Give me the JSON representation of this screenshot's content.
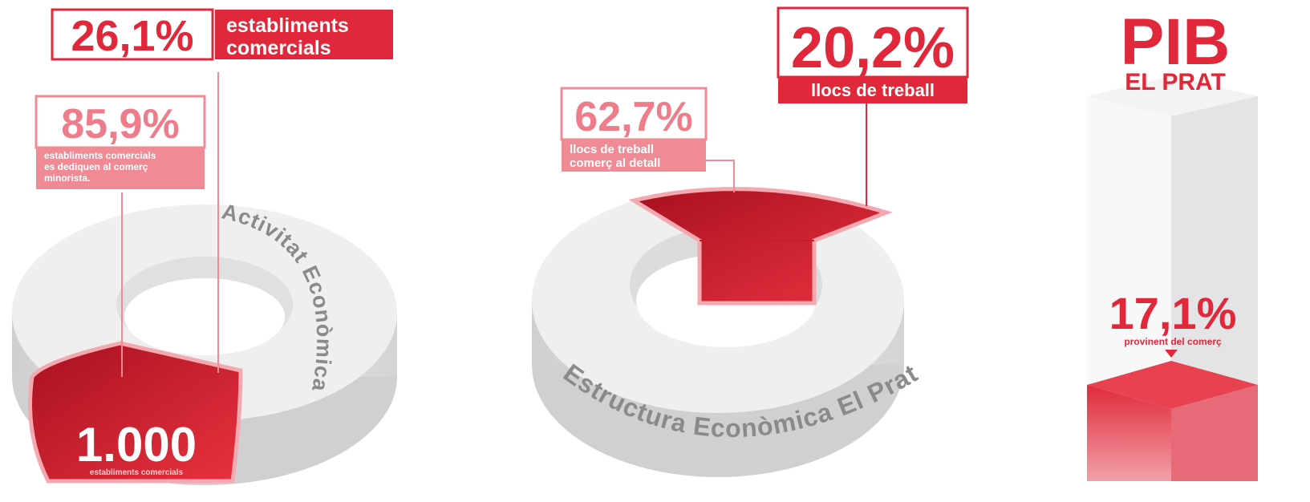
{
  "panels": [
    {
      "big_value": "26,1%",
      "big_label_lines": [
        "establiments",
        "comercials"
      ],
      "detail_value": "85,9%",
      "detail_label_lines": [
        "establiments comercials",
        "es dediquen al comerç",
        "minorista."
      ],
      "ring_title": "Activitat Econòmica El Prat",
      "count": "1.000",
      "count_label": "establiments comercials"
    },
    {
      "big_value": "20,2%",
      "big_label": "llocs de treball",
      "detail_value": "62,7%",
      "detail_label_lines": [
        "llocs de treball",
        "comerç al detall"
      ],
      "ring_title": "Estructura Econòmica El Prat"
    },
    {
      "title": "PIB",
      "subtitle": "EL PRAT",
      "value": "17,1%",
      "label": "provinent del comerç"
    }
  ]
}
